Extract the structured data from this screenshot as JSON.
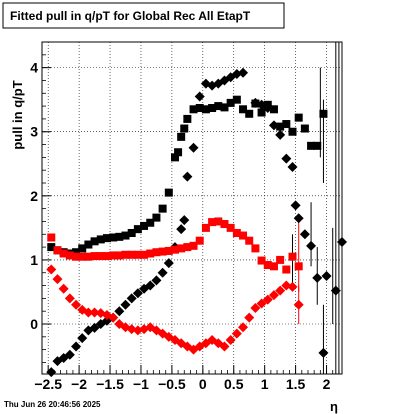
{
  "chart_data": {
    "type": "scatter",
    "title": "Fitted pull in q/pT for Global Rec All EtapT",
    "xlabel": "η",
    "ylabel": "pull in q/pT",
    "xlim": [
      -2.6,
      2.25
    ],
    "ylim": [
      -0.78,
      4.4
    ],
    "x_ticks": [
      -2.5,
      -2,
      -1.5,
      -1,
      -0.5,
      0,
      0.5,
      1,
      1.5,
      2
    ],
    "x_tick_labels": [
      "−2.5",
      "−2",
      "−1.5",
      "−1",
      "−0.5",
      "0",
      "0.5",
      "1",
      "1.5",
      "2"
    ],
    "y_ticks": [
      0,
      1,
      2,
      3,
      4
    ],
    "y_tick_labels": [
      "0",
      "1",
      "2",
      "3",
      "4"
    ],
    "grid": true,
    "timestamp": "Thu Jun 26 20:46:56 2025",
    "series": [
      {
        "color": "#000000",
        "marker": "square",
        "points": [
          [
            -2.45,
            1.2
          ],
          [
            -2.35,
            1.15
          ],
          [
            -2.25,
            1.12
          ],
          [
            -2.15,
            1.1
          ],
          [
            -2.05,
            1.12
          ],
          [
            -1.95,
            1.18
          ],
          [
            -1.85,
            1.24
          ],
          [
            -1.75,
            1.29
          ],
          [
            -1.65,
            1.32
          ],
          [
            -1.55,
            1.34
          ],
          [
            -1.45,
            1.35
          ],
          [
            -1.35,
            1.36
          ],
          [
            -1.25,
            1.38
          ],
          [
            -1.15,
            1.42
          ],
          [
            -1.05,
            1.48
          ],
          [
            -0.95,
            1.53
          ],
          [
            -0.85,
            1.58
          ],
          [
            -0.75,
            1.66
          ],
          [
            -0.65,
            1.8
          ],
          [
            -0.55,
            2.05
          ],
          [
            -0.45,
            2.6
          ],
          [
            -0.4,
            2.68
          ],
          [
            -0.35,
            2.92
          ],
          [
            -0.3,
            3.05
          ],
          [
            -0.25,
            3.2
          ],
          [
            -0.15,
            3.35
          ],
          [
            -0.05,
            3.37
          ],
          [
            0.05,
            3.35
          ],
          [
            0.15,
            3.37
          ],
          [
            0.25,
            3.4
          ],
          [
            0.35,
            3.38
          ],
          [
            0.45,
            3.45
          ],
          [
            0.55,
            3.5
          ],
          [
            0.65,
            3.35
          ],
          [
            0.75,
            3.28
          ],
          [
            0.85,
            3.44
          ],
          [
            0.95,
            3.3
          ],
          [
            1.05,
            3.42
          ],
          [
            1.15,
            3.35
          ],
          [
            1.25,
            3.08
          ],
          [
            1.35,
            3.12
          ],
          [
            1.45,
            3.0
          ],
          [
            1.55,
            3.22
          ],
          [
            1.65,
            3.05
          ],
          [
            1.75,
            2.78
          ],
          [
            1.85,
            2.78
          ],
          [
            1.95,
            3.28
          ]
        ]
      },
      {
        "color": "#000000",
        "marker": "diamond",
        "points": [
          [
            -2.45,
            -0.75
          ],
          [
            -2.35,
            -0.58
          ],
          [
            -2.25,
            -0.53
          ],
          [
            -2.15,
            -0.48
          ],
          [
            -2.05,
            -0.35
          ],
          [
            -1.95,
            -0.22
          ],
          [
            -1.85,
            -0.1
          ],
          [
            -1.75,
            -0.06
          ],
          [
            -1.65,
            0.0
          ],
          [
            -1.55,
            0.05
          ],
          [
            -1.45,
            0.1
          ],
          [
            -1.35,
            0.2
          ],
          [
            -1.25,
            0.3
          ],
          [
            -1.15,
            0.4
          ],
          [
            -1.05,
            0.48
          ],
          [
            -0.95,
            0.55
          ],
          [
            -0.85,
            0.6
          ],
          [
            -0.75,
            0.68
          ],
          [
            -0.65,
            0.8
          ],
          [
            -0.55,
            0.95
          ],
          [
            -0.45,
            1.2
          ],
          [
            -0.35,
            1.48
          ],
          [
            -0.3,
            1.62
          ],
          [
            -0.25,
            2.3
          ],
          [
            -0.15,
            2.75
          ],
          [
            -0.05,
            3.55
          ],
          [
            0.05,
            3.75
          ],
          [
            0.15,
            3.72
          ],
          [
            0.25,
            3.75
          ],
          [
            0.35,
            3.8
          ],
          [
            0.45,
            3.85
          ],
          [
            0.55,
            3.9
          ],
          [
            0.65,
            3.92
          ],
          [
            0.85,
            3.45
          ],
          [
            0.95,
            3.42
          ],
          [
            1.05,
            3.37
          ],
          [
            1.15,
            3.1
          ],
          [
            1.25,
            2.95
          ],
          [
            1.35,
            2.58
          ],
          [
            1.45,
            2.45
          ],
          [
            1.5,
            1.85
          ],
          [
            1.55,
            1.65
          ],
          [
            1.65,
            1.4
          ],
          [
            1.75,
            1.22
          ],
          [
            1.85,
            0.72
          ],
          [
            1.95,
            -0.45
          ],
          [
            2.0,
            0.75
          ],
          [
            2.15,
            0.52
          ],
          [
            2.25,
            1.28
          ]
        ]
      },
      {
        "color": "#ff0000",
        "marker": "square",
        "points": [
          [
            -2.45,
            1.35
          ],
          [
            -2.35,
            1.15
          ],
          [
            -2.25,
            1.1
          ],
          [
            -2.15,
            1.07
          ],
          [
            -2.05,
            1.05
          ],
          [
            -1.95,
            1.05
          ],
          [
            -1.85,
            1.05
          ],
          [
            -1.75,
            1.06
          ],
          [
            -1.65,
            1.06
          ],
          [
            -1.55,
            1.06
          ],
          [
            -1.45,
            1.07
          ],
          [
            -1.35,
            1.07
          ],
          [
            -1.25,
            1.08
          ],
          [
            -1.15,
            1.08
          ],
          [
            -1.05,
            1.08
          ],
          [
            -0.95,
            1.08
          ],
          [
            -0.85,
            1.1
          ],
          [
            -0.75,
            1.12
          ],
          [
            -0.65,
            1.13
          ],
          [
            -0.55,
            1.14
          ],
          [
            -0.45,
            1.16
          ],
          [
            -0.35,
            1.18
          ],
          [
            -0.25,
            1.2
          ],
          [
            -0.15,
            1.22
          ],
          [
            -0.05,
            1.3
          ],
          [
            0.05,
            1.5
          ],
          [
            0.15,
            1.59
          ],
          [
            0.25,
            1.6
          ],
          [
            0.35,
            1.56
          ],
          [
            0.45,
            1.5
          ],
          [
            0.55,
            1.42
          ],
          [
            0.65,
            1.38
          ],
          [
            0.75,
            1.3
          ],
          [
            0.85,
            1.18
          ],
          [
            0.95,
            0.99
          ],
          [
            1.05,
            0.92
          ],
          [
            1.15,
            0.9
          ],
          [
            1.25,
            1.0
          ],
          [
            1.35,
            0.85
          ],
          [
            1.45,
            1.05
          ],
          [
            1.55,
            0.9
          ]
        ]
      },
      {
        "color": "#ff0000",
        "marker": "diamond",
        "points": [
          [
            -2.45,
            0.85
          ],
          [
            -2.35,
            0.7
          ],
          [
            -2.25,
            0.55
          ],
          [
            -2.15,
            0.4
          ],
          [
            -2.05,
            0.3
          ],
          [
            -1.95,
            0.22
          ],
          [
            -1.85,
            0.18
          ],
          [
            -1.75,
            0.18
          ],
          [
            -1.65,
            0.17
          ],
          [
            -1.55,
            0.14
          ],
          [
            -1.45,
            0.1
          ],
          [
            -1.35,
            0.0
          ],
          [
            -1.25,
            -0.05
          ],
          [
            -1.15,
            -0.08
          ],
          [
            -1.05,
            -0.1
          ],
          [
            -0.95,
            -0.08
          ],
          [
            -0.85,
            -0.05
          ],
          [
            -0.75,
            -0.1
          ],
          [
            -0.65,
            -0.15
          ],
          [
            -0.55,
            -0.2
          ],
          [
            -0.45,
            -0.25
          ],
          [
            -0.35,
            -0.3
          ],
          [
            -0.25,
            -0.35
          ],
          [
            -0.15,
            -0.4
          ],
          [
            -0.05,
            -0.35
          ],
          [
            0.05,
            -0.3
          ],
          [
            0.15,
            -0.25
          ],
          [
            0.25,
            -0.3
          ],
          [
            0.35,
            -0.35
          ],
          [
            0.45,
            -0.25
          ],
          [
            0.55,
            -0.15
          ],
          [
            0.65,
            -0.05
          ],
          [
            0.75,
            0.1
          ],
          [
            0.85,
            0.25
          ],
          [
            0.95,
            0.32
          ],
          [
            1.05,
            0.38
          ],
          [
            1.15,
            0.45
          ],
          [
            1.25,
            0.52
          ],
          [
            1.35,
            0.6
          ],
          [
            1.45,
            0.58
          ],
          [
            1.55,
            0.3
          ]
        ]
      }
    ]
  }
}
